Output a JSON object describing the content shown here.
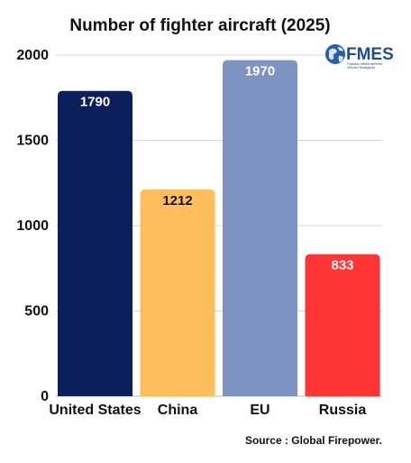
{
  "chart_data": {
    "type": "bar",
    "title": "Number of fighter aircraft (2025)",
    "categories": [
      "United States",
      "China",
      "EU",
      "Russia"
    ],
    "values": [
      1790,
      1212,
      1970,
      833
    ],
    "colors": [
      "#0b1f5c",
      "#ffbe5c",
      "#7d93c2",
      "#ff3434"
    ],
    "value_label_colors": [
      "#ffffff",
      "#111111",
      "#ffffff",
      "#ffffff"
    ],
    "yticks": [
      0,
      500,
      1000,
      1500,
      2000
    ],
    "ytick_labels": [
      "0",
      "500",
      "1000",
      "1500",
      "2000"
    ],
    "ylim": [
      0,
      2000
    ],
    "xlabel": "",
    "ylabel": "",
    "grid": true,
    "legend": "none"
  },
  "source": "Source : Global Firepower.",
  "logo": {
    "text": "FMES",
    "subtitle_lines": [
      "Fondation Méditerranéenne",
      "d'Études Stratégiques"
    ],
    "icon": "globe-icon",
    "colors": {
      "text": "#1f4e8c",
      "globe": "#2a5ea8"
    }
  }
}
